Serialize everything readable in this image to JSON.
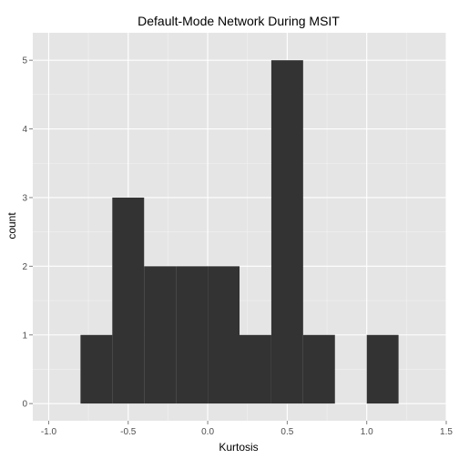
{
  "chart_data": {
    "type": "bar",
    "title": "Default-Mode Network During MSIT",
    "xlabel": "Kurtosis",
    "ylabel": "count",
    "xlim": [
      -1.1,
      1.5
    ],
    "ylim": [
      -0.25,
      5.4
    ],
    "x_ticks": [
      -1.0,
      -0.5,
      0.0,
      0.5,
      1.0,
      1.5
    ],
    "x_tick_labels": [
      "-1.0",
      "-0.5",
      "0.0",
      "0.5",
      "1.0",
      "1.5"
    ],
    "y_ticks": [
      0,
      1,
      2,
      3,
      4,
      5
    ],
    "y_tick_labels": [
      "0",
      "1",
      "2",
      "3",
      "4",
      "5"
    ],
    "bin_width": 0.2,
    "bins": [
      {
        "start": -0.8,
        "end": -0.6,
        "count": 1
      },
      {
        "start": -0.6,
        "end": -0.4,
        "count": 3
      },
      {
        "start": -0.4,
        "end": -0.2,
        "count": 2
      },
      {
        "start": -0.2,
        "end": 0.0,
        "count": 2
      },
      {
        "start": 0.0,
        "end": 0.2,
        "count": 2
      },
      {
        "start": 0.2,
        "end": 0.4,
        "count": 1
      },
      {
        "start": 0.4,
        "end": 0.6,
        "count": 5
      },
      {
        "start": 0.6,
        "end": 0.8,
        "count": 1
      },
      {
        "start": 0.8,
        "end": 1.0,
        "count": 0
      },
      {
        "start": 1.0,
        "end": 1.2,
        "count": 1
      }
    ],
    "grid": true,
    "colors": {
      "panel": "#e5e5e5",
      "grid_major": "#ffffff",
      "grid_minor": "#f2f2f2",
      "bar": "#333333",
      "tick_text": "#4d4d4d"
    }
  }
}
